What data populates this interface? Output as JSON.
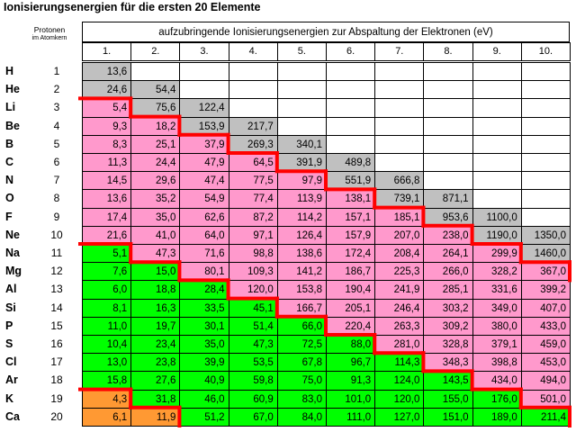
{
  "title": "Ionisierungsenergien für die ersten 20 Elemente",
  "protonen_header": {
    "line1": "Protonen",
    "line2": "im Atomkern"
  },
  "energy_header": "aufzubringende Ionisierungsenergien zur Abspaltung der Elektronen (eV)",
  "columns": [
    "1.",
    "2.",
    "3.",
    "4.",
    "5.",
    "6.",
    "7.",
    "8.",
    "9.",
    "10."
  ],
  "colors": {
    "gray": "#c0c0c0",
    "pink": "#ff99cc",
    "green": "#00ff00",
    "orange": "#ff9933",
    "white": "#ffffff",
    "red_line": "#ff0000"
  },
  "rows": [
    {
      "symbol": "H",
      "protons": "1",
      "values": [
        "13,6"
      ],
      "colors": [
        "gray"
      ]
    },
    {
      "symbol": "He",
      "protons": "2",
      "values": [
        "24,6",
        "54,4"
      ],
      "colors": [
        "gray",
        "gray"
      ]
    },
    {
      "symbol": "Li",
      "protons": "3",
      "values": [
        "5,4",
        "75,6",
        "122,4"
      ],
      "colors": [
        "pink",
        "gray",
        "gray"
      ]
    },
    {
      "symbol": "Be",
      "protons": "4",
      "values": [
        "9,3",
        "18,2",
        "153,9",
        "217,7"
      ],
      "colors": [
        "pink",
        "pink",
        "gray",
        "gray"
      ]
    },
    {
      "symbol": "B",
      "protons": "5",
      "values": [
        "8,3",
        "25,1",
        "37,9",
        "269,3",
        "340,1"
      ],
      "colors": [
        "pink",
        "pink",
        "pink",
        "gray",
        "gray"
      ]
    },
    {
      "symbol": "C",
      "protons": "6",
      "values": [
        "11,3",
        "24,4",
        "47,9",
        "64,5",
        "391,9",
        "489,8"
      ],
      "colors": [
        "pink",
        "pink",
        "pink",
        "pink",
        "gray",
        "gray"
      ]
    },
    {
      "symbol": "N",
      "protons": "7",
      "values": [
        "14,5",
        "29,6",
        "47,4",
        "77,5",
        "97,9",
        "551,9",
        "666,8"
      ],
      "colors": [
        "pink",
        "pink",
        "pink",
        "pink",
        "pink",
        "gray",
        "gray"
      ]
    },
    {
      "symbol": "O",
      "protons": "8",
      "values": [
        "13,6",
        "35,2",
        "54,9",
        "77,4",
        "113,9",
        "138,1",
        "739,1",
        "871,1"
      ],
      "colors": [
        "pink",
        "pink",
        "pink",
        "pink",
        "pink",
        "pink",
        "gray",
        "gray"
      ]
    },
    {
      "symbol": "F",
      "protons": "9",
      "values": [
        "17,4",
        "35,0",
        "62,6",
        "87,2",
        "114,2",
        "157,1",
        "185,1",
        "953,6",
        "1100,0"
      ],
      "colors": [
        "pink",
        "pink",
        "pink",
        "pink",
        "pink",
        "pink",
        "pink",
        "gray",
        "gray"
      ]
    },
    {
      "symbol": "Ne",
      "protons": "10",
      "values": [
        "21,6",
        "41,0",
        "64,0",
        "97,1",
        "126,4",
        "157,9",
        "207,0",
        "238,0",
        "1190,0",
        "1350,0"
      ],
      "colors": [
        "pink",
        "pink",
        "pink",
        "pink",
        "pink",
        "pink",
        "pink",
        "pink",
        "gray",
        "gray"
      ]
    },
    {
      "symbol": "Na",
      "protons": "11",
      "values": [
        "5,1",
        "47,3",
        "71,6",
        "98,8",
        "138,6",
        "172,4",
        "208,4",
        "264,1",
        "299,9",
        "1460,0"
      ],
      "colors": [
        "green",
        "pink",
        "pink",
        "pink",
        "pink",
        "pink",
        "pink",
        "pink",
        "pink",
        "gray"
      ]
    },
    {
      "symbol": "Mg",
      "protons": "12",
      "values": [
        "7,6",
        "15,0",
        "80,1",
        "109,3",
        "141,2",
        "186,7",
        "225,3",
        "266,0",
        "328,2",
        "367,0"
      ],
      "colors": [
        "green",
        "green",
        "pink",
        "pink",
        "pink",
        "pink",
        "pink",
        "pink",
        "pink",
        "pink"
      ]
    },
    {
      "symbol": "Al",
      "protons": "13",
      "values": [
        "6,0",
        "18,8",
        "28,4",
        "120,0",
        "153,8",
        "190,4",
        "241,9",
        "285,1",
        "331,6",
        "399,2"
      ],
      "colors": [
        "green",
        "green",
        "green",
        "pink",
        "pink",
        "pink",
        "pink",
        "pink",
        "pink",
        "pink"
      ]
    },
    {
      "symbol": "Si",
      "protons": "14",
      "values": [
        "8,1",
        "16,3",
        "33,5",
        "45,1",
        "166,7",
        "205,1",
        "246,4",
        "303,2",
        "349,0",
        "407,0"
      ],
      "colors": [
        "green",
        "green",
        "green",
        "green",
        "pink",
        "pink",
        "pink",
        "pink",
        "pink",
        "pink"
      ]
    },
    {
      "symbol": "P",
      "protons": "15",
      "values": [
        "11,0",
        "19,7",
        "30,1",
        "51,4",
        "66,0",
        "220,4",
        "263,3",
        "309,2",
        "380,0",
        "433,0"
      ],
      "colors": [
        "green",
        "green",
        "green",
        "green",
        "green",
        "pink",
        "pink",
        "pink",
        "pink",
        "pink"
      ]
    },
    {
      "symbol": "S",
      "protons": "16",
      "values": [
        "10,4",
        "23,4",
        "35,0",
        "47,3",
        "72,5",
        "88,0",
        "281,0",
        "328,8",
        "379,1",
        "459,0"
      ],
      "colors": [
        "green",
        "green",
        "green",
        "green",
        "green",
        "green",
        "pink",
        "pink",
        "pink",
        "pink"
      ]
    },
    {
      "symbol": "Cl",
      "protons": "17",
      "values": [
        "13,0",
        "23,8",
        "39,9",
        "53,5",
        "67,8",
        "96,7",
        "114,3",
        "348,3",
        "398,8",
        "453,0"
      ],
      "colors": [
        "green",
        "green",
        "green",
        "green",
        "green",
        "green",
        "green",
        "pink",
        "pink",
        "pink"
      ]
    },
    {
      "symbol": "Ar",
      "protons": "18",
      "values": [
        "15,8",
        "27,6",
        "40,9",
        "59,8",
        "75,0",
        "91,3",
        "124,0",
        "143,5",
        "434,0",
        "494,0"
      ],
      "colors": [
        "green",
        "green",
        "green",
        "green",
        "green",
        "green",
        "green",
        "green",
        "pink",
        "pink"
      ]
    },
    {
      "symbol": "K",
      "protons": "19",
      "values": [
        "4,3",
        "31,8",
        "46,0",
        "60,9",
        "83,0",
        "101,0",
        "120,0",
        "155,0",
        "176,0",
        "501,0"
      ],
      "colors": [
        "orange",
        "green",
        "green",
        "green",
        "green",
        "green",
        "green",
        "green",
        "green",
        "pink"
      ]
    },
    {
      "symbol": "Ca",
      "protons": "20",
      "values": [
        "6,1",
        "11,9",
        "51,2",
        "67,0",
        "84,0",
        "111,0",
        "127,0",
        "151,0",
        "189,0",
        "211,4"
      ],
      "colors": [
        "orange",
        "orange",
        "green",
        "green",
        "green",
        "green",
        "green",
        "green",
        "green",
        "green"
      ]
    }
  ],
  "shell_boundaries": {
    "row3": [
      0
    ],
    "row4": [
      1
    ],
    "row5": [
      2
    ],
    "row6": [
      3
    ],
    "row7": [
      4
    ],
    "row8": [
      5
    ],
    "row9": [
      6
    ],
    "row10": [
      7
    ],
    "row11": [
      0,
      8
    ],
    "row12": [
      1,
      9
    ],
    "row13": [
      2
    ],
    "row14": [
      3
    ],
    "row15": [
      4
    ],
    "row16": [
      5
    ],
    "row17": [
      6
    ],
    "row18": [
      7
    ],
    "row19": [
      0,
      8
    ],
    "row20": [
      1,
      9
    ]
  }
}
